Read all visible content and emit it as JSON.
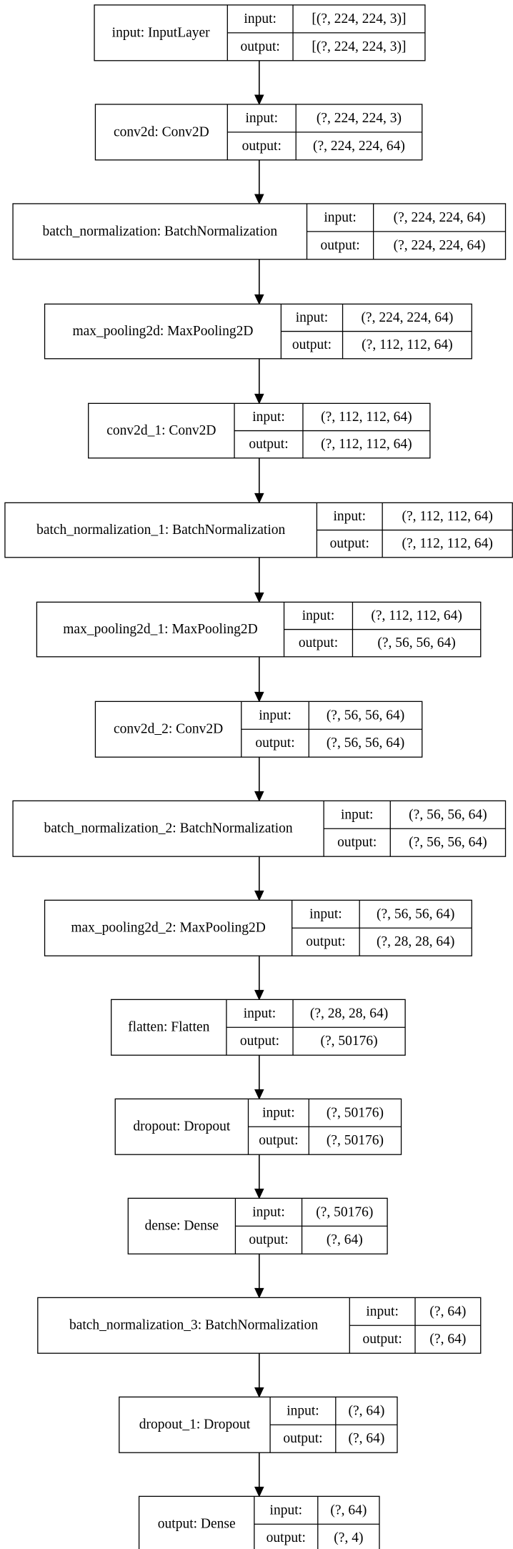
{
  "layers": [
    {
      "name": "input: InputLayer",
      "in_label": "input:",
      "in_value": "[(?, 224, 224, 3)]",
      "out_label": "output:",
      "out_value": "[(?, 224, 224, 3)]"
    },
    {
      "name": "conv2d: Conv2D",
      "in_label": "input:",
      "in_value": "(?, 224, 224, 3)",
      "out_label": "output:",
      "out_value": "(?, 224, 224, 64)"
    },
    {
      "name": "batch_normalization: BatchNormalization",
      "in_label": "input:",
      "in_value": "(?, 224, 224, 64)",
      "out_label": "output:",
      "out_value": "(?, 224, 224, 64)"
    },
    {
      "name": "max_pooling2d: MaxPooling2D",
      "in_label": "input:",
      "in_value": "(?, 224, 224, 64)",
      "out_label": "output:",
      "out_value": "(?, 112, 112, 64)"
    },
    {
      "name": "conv2d_1: Conv2D",
      "in_label": "input:",
      "in_value": "(?, 112, 112, 64)",
      "out_label": "output:",
      "out_value": "(?, 112, 112, 64)"
    },
    {
      "name": "batch_normalization_1: BatchNormalization",
      "in_label": "input:",
      "in_value": "(?, 112, 112, 64)",
      "out_label": "output:",
      "out_value": "(?, 112, 112, 64)"
    },
    {
      "name": "max_pooling2d_1: MaxPooling2D",
      "in_label": "input:",
      "in_value": "(?, 112, 112, 64)",
      "out_label": "output:",
      "out_value": "(?, 56, 56, 64)"
    },
    {
      "name": "conv2d_2: Conv2D",
      "in_label": "input:",
      "in_value": "(?, 56, 56, 64)",
      "out_label": "output:",
      "out_value": "(?, 56, 56, 64)"
    },
    {
      "name": "batch_normalization_2: BatchNormalization",
      "in_label": "input:",
      "in_value": "(?, 56, 56, 64)",
      "out_label": "output:",
      "out_value": "(?, 56, 56, 64)"
    },
    {
      "name": "max_pooling2d_2: MaxPooling2D",
      "in_label": "input:",
      "in_value": "(?, 56, 56, 64)",
      "out_label": "output:",
      "out_value": "(?, 28, 28, 64)"
    },
    {
      "name": "flatten: Flatten",
      "in_label": "input:",
      "in_value": "(?, 28, 28, 64)",
      "out_label": "output:",
      "out_value": "(?, 50176)"
    },
    {
      "name": "dropout: Dropout",
      "in_label": "input:",
      "in_value": "(?, 50176)",
      "out_label": "output:",
      "out_value": "(?, 50176)"
    },
    {
      "name": "dense: Dense",
      "in_label": "input:",
      "in_value": "(?, 50176)",
      "out_label": "output:",
      "out_value": "(?, 64)"
    },
    {
      "name": "batch_normalization_3: BatchNormalization",
      "in_label": "input:",
      "in_value": "(?, 64)",
      "out_label": "output:",
      "out_value": "(?, 64)"
    },
    {
      "name": "dropout_1: Dropout",
      "in_label": "input:",
      "in_value": "(?, 64)",
      "out_label": "output:",
      "out_value": "(?, 64)"
    },
    {
      "name": "output: Dense",
      "in_label": "input:",
      "in_value": "(?, 64)",
      "out_label": "output:",
      "out_value": "(?, 4)"
    }
  ]
}
